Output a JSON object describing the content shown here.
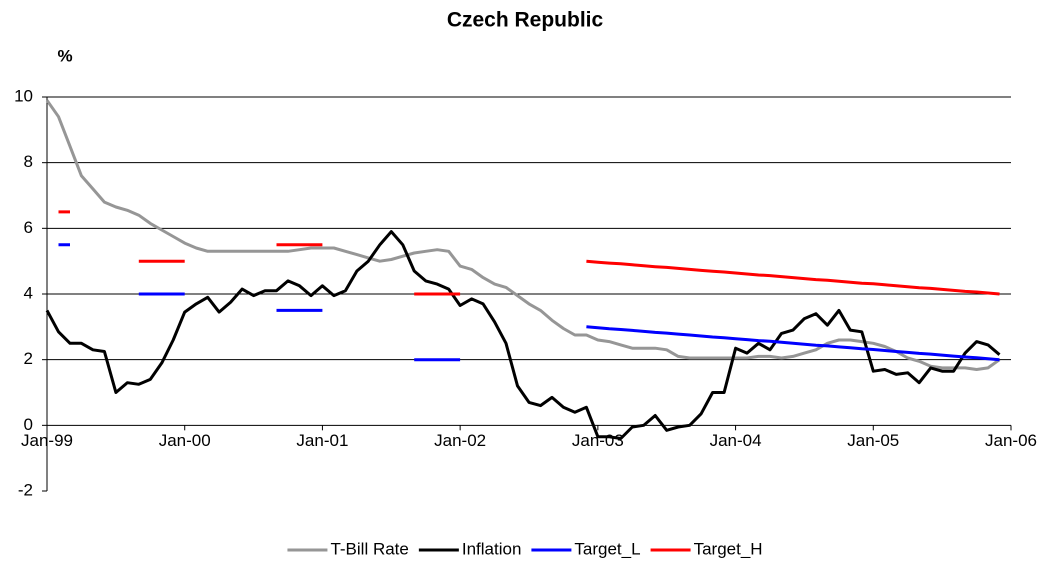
{
  "chart_data": {
    "type": "line",
    "title": "Czech Republic",
    "ylabel": "%",
    "categories": [
      "Jan-99",
      null,
      null,
      null,
      null,
      null,
      null,
      null,
      null,
      null,
      null,
      null,
      "Jan-00",
      null,
      null,
      null,
      null,
      null,
      null,
      null,
      null,
      null,
      null,
      null,
      "Jan-01",
      null,
      null,
      null,
      null,
      null,
      null,
      null,
      null,
      null,
      null,
      null,
      "Jan-02",
      null,
      null,
      null,
      null,
      null,
      null,
      null,
      null,
      null,
      null,
      null,
      "Jan-03",
      null,
      null,
      null,
      null,
      null,
      null,
      null,
      null,
      null,
      null,
      null,
      "Jan-04",
      null,
      null,
      null,
      null,
      null,
      null,
      null,
      null,
      null,
      null,
      null,
      "Jan-05",
      null,
      null,
      null,
      null,
      null,
      null,
      null,
      null,
      null,
      null,
      null,
      "Jan-06"
    ],
    "series": [
      {
        "name": "T-Bill Rate",
        "color": "#969696",
        "values": [
          9.9,
          9.4,
          8.5,
          7.6,
          7.2,
          6.8,
          6.65,
          6.55,
          6.4,
          6.15,
          5.95,
          5.75,
          5.55,
          5.4,
          5.3,
          5.3,
          5.3,
          5.3,
          5.3,
          5.3,
          5.3,
          5.3,
          5.35,
          5.4,
          5.4,
          5.4,
          5.3,
          5.2,
          5.1,
          5.0,
          5.05,
          5.15,
          5.25,
          5.3,
          5.35,
          5.3,
          4.85,
          4.75,
          4.5,
          4.3,
          4.2,
          3.95,
          3.7,
          3.5,
          3.2,
          2.95,
          2.75,
          2.75,
          2.6,
          2.55,
          2.45,
          2.35,
          2.35,
          2.35,
          2.3,
          2.1,
          2.05,
          2.05,
          2.05,
          2.05,
          2.05,
          2.05,
          2.1,
          2.1,
          2.05,
          2.1,
          2.2,
          2.3,
          2.5,
          2.6,
          2.6,
          2.55,
          2.5,
          2.4,
          2.25,
          2.05,
          1.95,
          1.8,
          1.75,
          1.75,
          1.75,
          1.7,
          1.75,
          2.0,
          null
        ]
      },
      {
        "name": "Inflation",
        "color": "#000000",
        "values": [
          3.5,
          2.85,
          2.5,
          2.5,
          2.3,
          2.25,
          1.0,
          1.3,
          1.25,
          1.4,
          1.9,
          2.6,
          3.45,
          3.7,
          3.9,
          3.45,
          3.75,
          4.15,
          3.95,
          4.1,
          4.1,
          4.4,
          4.25,
          3.95,
          4.25,
          3.95,
          4.1,
          4.7,
          5.0,
          5.5,
          5.9,
          5.5,
          4.7,
          4.4,
          4.3,
          4.15,
          3.65,
          3.85,
          3.7,
          3.15,
          2.5,
          1.2,
          0.7,
          0.6,
          0.85,
          0.55,
          0.4,
          0.55,
          -0.35,
          -0.35,
          -0.4,
          -0.05,
          0.0,
          0.3,
          -0.15,
          -0.05,
          0.0,
          0.35,
          1.0,
          1.0,
          2.35,
          2.2,
          2.5,
          2.3,
          2.8,
          2.9,
          3.25,
          3.4,
          3.05,
          3.5,
          2.9,
          2.85,
          1.65,
          1.7,
          1.55,
          1.6,
          1.3,
          1.75,
          1.65,
          1.65,
          2.2,
          2.55,
          2.45,
          2.15,
          null
        ]
      },
      {
        "name": "Target_L",
        "color": "#0000ff",
        "values": [
          null,
          5.5,
          5.5,
          null,
          null,
          null,
          null,
          null,
          4.0,
          4.0,
          4.0,
          4.0,
          4.0,
          null,
          null,
          null,
          null,
          null,
          null,
          null,
          3.5,
          3.5,
          3.5,
          3.5,
          3.5,
          null,
          null,
          null,
          null,
          null,
          null,
          null,
          2.0,
          2.0,
          2.0,
          2.0,
          2.0,
          null,
          null,
          null,
          null,
          null,
          null,
          null,
          null,
          null,
          null,
          3.0,
          2.97,
          2.94,
          2.92,
          2.89,
          2.86,
          2.83,
          2.81,
          2.78,
          2.75,
          2.72,
          2.69,
          2.67,
          2.64,
          2.61,
          2.58,
          2.56,
          2.53,
          2.5,
          2.47,
          2.44,
          2.42,
          2.39,
          2.36,
          2.33,
          2.31,
          2.28,
          2.25,
          2.22,
          2.19,
          2.17,
          2.14,
          2.11,
          2.08,
          2.06,
          2.03,
          2.0,
          null
        ]
      },
      {
        "name": "Target_H",
        "color": "#ff0000",
        "values": [
          null,
          6.5,
          6.5,
          null,
          null,
          null,
          null,
          null,
          5.0,
          5.0,
          5.0,
          5.0,
          5.0,
          null,
          null,
          null,
          null,
          null,
          null,
          null,
          5.5,
          5.5,
          5.5,
          5.5,
          5.5,
          null,
          null,
          null,
          null,
          null,
          null,
          null,
          4.0,
          4.0,
          4.0,
          4.0,
          4.0,
          null,
          null,
          null,
          null,
          null,
          null,
          null,
          null,
          null,
          null,
          5.0,
          4.97,
          4.94,
          4.92,
          4.89,
          4.86,
          4.83,
          4.81,
          4.78,
          4.75,
          4.72,
          4.69,
          4.67,
          4.64,
          4.61,
          4.58,
          4.56,
          4.53,
          4.5,
          4.47,
          4.44,
          4.42,
          4.39,
          4.36,
          4.33,
          4.31,
          4.28,
          4.25,
          4.22,
          4.19,
          4.17,
          4.14,
          4.11,
          4.08,
          4.06,
          4.03,
          4.0,
          null
        ]
      }
    ],
    "ylim": [
      -2,
      10
    ],
    "yticks": [
      -2,
      0,
      2,
      4,
      6,
      8,
      10
    ],
    "grid": true,
    "legend": "bottom"
  }
}
